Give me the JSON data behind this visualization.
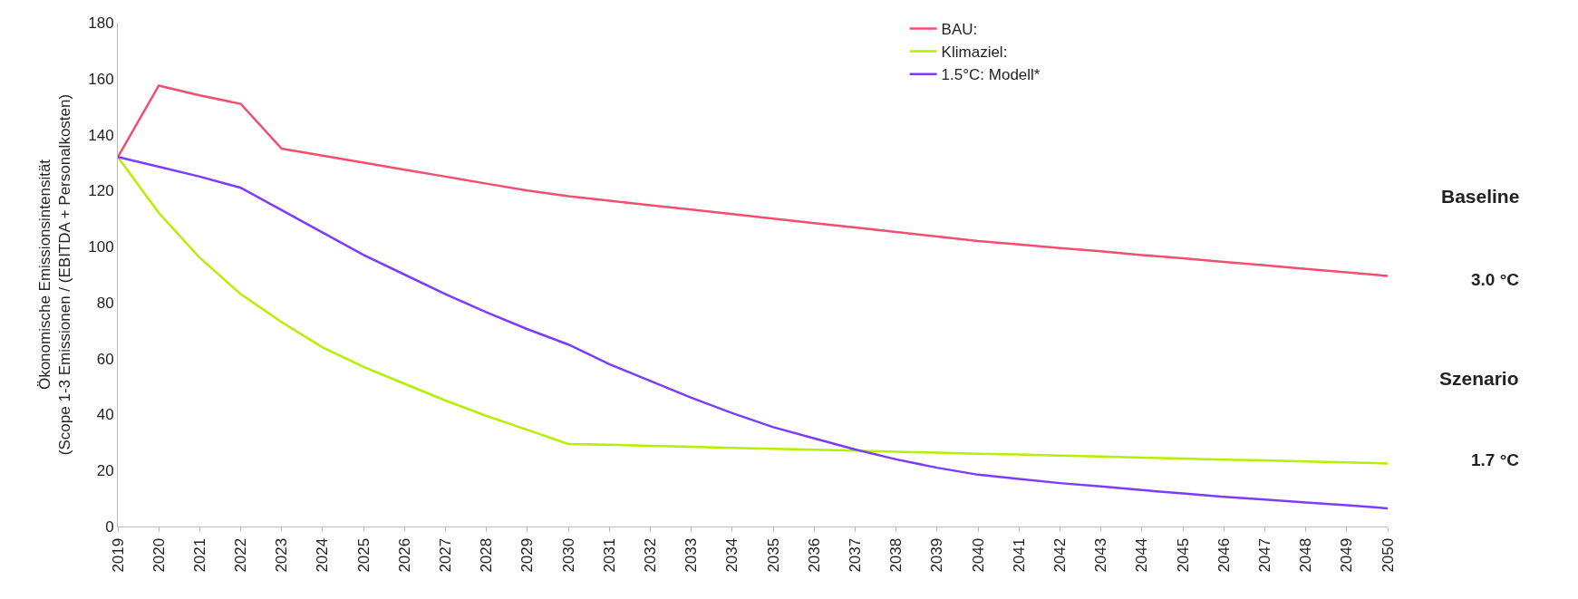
{
  "chart_data": {
    "type": "line",
    "ylabel": "Ökonomische Emissionsintensität\n(Scope 1-3 Emissionen / (EBITDA + Personalkosten)",
    "x": [
      2019,
      2020,
      2021,
      2022,
      2023,
      2024,
      2025,
      2026,
      2027,
      2028,
      2029,
      2030,
      2031,
      2032,
      2033,
      2034,
      2035,
      2036,
      2037,
      2038,
      2039,
      2040,
      2041,
      2042,
      2043,
      2044,
      2045,
      2046,
      2047,
      2048,
      2049,
      2050
    ],
    "xlim": [
      2019,
      2050
    ],
    "xticks": [
      2019,
      2020,
      2021,
      2022,
      2023,
      2024,
      2025,
      2026,
      2027,
      2028,
      2029,
      2030,
      2031,
      2032,
      2033,
      2034,
      2035,
      2036,
      2037,
      2038,
      2039,
      2040,
      2041,
      2042,
      2043,
      2044,
      2045,
      2046,
      2047,
      2048,
      2049,
      2050
    ],
    "ylim": [
      0,
      180
    ],
    "yticks": [
      0,
      20,
      40,
      60,
      80,
      100,
      120,
      140,
      160,
      180
    ],
    "series": [
      {
        "name": "BAU:",
        "color": "#f0506e",
        "values": [
          132,
          157.5,
          154,
          151,
          135,
          132.5,
          130,
          127.5,
          125,
          122.5,
          120,
          118,
          116.4,
          114.8,
          113.2,
          111.6,
          110,
          108.4,
          106.8,
          105.2,
          103.6,
          102,
          100.8,
          99.5,
          98.3,
          97,
          95.8,
          94.5,
          93.3,
          92,
          90.8,
          89.5
        ]
      },
      {
        "name": "Klimaziel:",
        "color": "#b4f000",
        "values": [
          132,
          112,
          96,
          83,
          73,
          64,
          57,
          51,
          45,
          39.5,
          34.5,
          29.5,
          29.2,
          28.8,
          28.5,
          28.1,
          27.8,
          27.4,
          27.1,
          26.7,
          26.4,
          26,
          25.7,
          25.3,
          25,
          24.6,
          24.3,
          23.9,
          23.6,
          23.2,
          22.9,
          22.5
        ]
      },
      {
        "name": "1.5°C: Modell*",
        "color": "#7c3cff",
        "values": [
          132,
          128.5,
          125,
          121,
          113,
          105,
          97,
          90,
          83,
          76.5,
          70.5,
          65,
          58,
          52,
          46,
          40.5,
          35.5,
          31.5,
          27.5,
          24,
          21,
          18.5,
          17,
          15.5,
          14.3,
          13,
          11.8,
          10.6,
          9.6,
          8.6,
          7.6,
          6.5
        ]
      }
    ],
    "annotations": [
      "Baseline",
      "3.0 °C",
      "Szenario",
      "1.7 °C"
    ],
    "legend": "top right",
    "marker": "none",
    "line_style": "solid"
  }
}
